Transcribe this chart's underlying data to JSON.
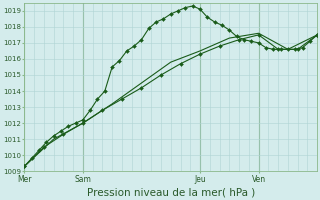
{
  "background_color": "#d4ecec",
  "grid_color": "#afd4d4",
  "line_color": "#1a5c1a",
  "marker_color": "#1a5c1a",
  "xlabel": "Pression niveau de la mer( hPa )",
  "xlabel_fontsize": 7.5,
  "ylim": [
    1009,
    1019.5
  ],
  "yticks": [
    1009,
    1010,
    1011,
    1012,
    1013,
    1014,
    1015,
    1016,
    1017,
    1018,
    1019
  ],
  "day_labels": [
    "Mer",
    "Sam",
    "Jeu",
    "Ven"
  ],
  "day_positions": [
    0,
    24,
    72,
    96
  ],
  "xlim": [
    0,
    120
  ],
  "series1_x": [
    0,
    3,
    6,
    9,
    12,
    15,
    18,
    21,
    24,
    27,
    30,
    33,
    36,
    39,
    42,
    45,
    48,
    51,
    54,
    57,
    60,
    63,
    66,
    69,
    72,
    75,
    78,
    81,
    84,
    87,
    90,
    93,
    96,
    99,
    102,
    105,
    108,
    111,
    114,
    117,
    120
  ],
  "series1_y": [
    1009.3,
    1009.8,
    1010.3,
    1010.8,
    1011.2,
    1011.5,
    1011.8,
    1012.0,
    1012.2,
    1012.8,
    1013.5,
    1014.0,
    1015.5,
    1015.9,
    1016.5,
    1016.8,
    1017.2,
    1017.9,
    1018.3,
    1018.5,
    1018.8,
    1019.0,
    1019.2,
    1019.3,
    1019.1,
    1018.6,
    1018.3,
    1018.1,
    1017.8,
    1017.4,
    1017.2,
    1017.1,
    1017.0,
    1016.7,
    1016.6,
    1016.6,
    1016.6,
    1016.6,
    1016.7,
    1017.1,
    1017.5
  ],
  "series2_x": [
    0,
    8,
    16,
    24,
    32,
    40,
    48,
    56,
    64,
    72,
    80,
    88,
    96,
    104,
    112,
    120
  ],
  "series2_y": [
    1009.3,
    1010.5,
    1011.3,
    1012.0,
    1012.8,
    1013.5,
    1014.2,
    1015.0,
    1015.7,
    1016.3,
    1016.8,
    1017.2,
    1017.5,
    1016.6,
    1016.6,
    1017.5
  ],
  "series3_x": [
    0,
    12,
    24,
    36,
    48,
    60,
    72,
    84,
    96,
    108,
    120
  ],
  "series3_y": [
    1009.3,
    1011.0,
    1012.0,
    1013.2,
    1014.5,
    1015.8,
    1016.5,
    1017.3,
    1017.6,
    1016.6,
    1017.5
  ]
}
